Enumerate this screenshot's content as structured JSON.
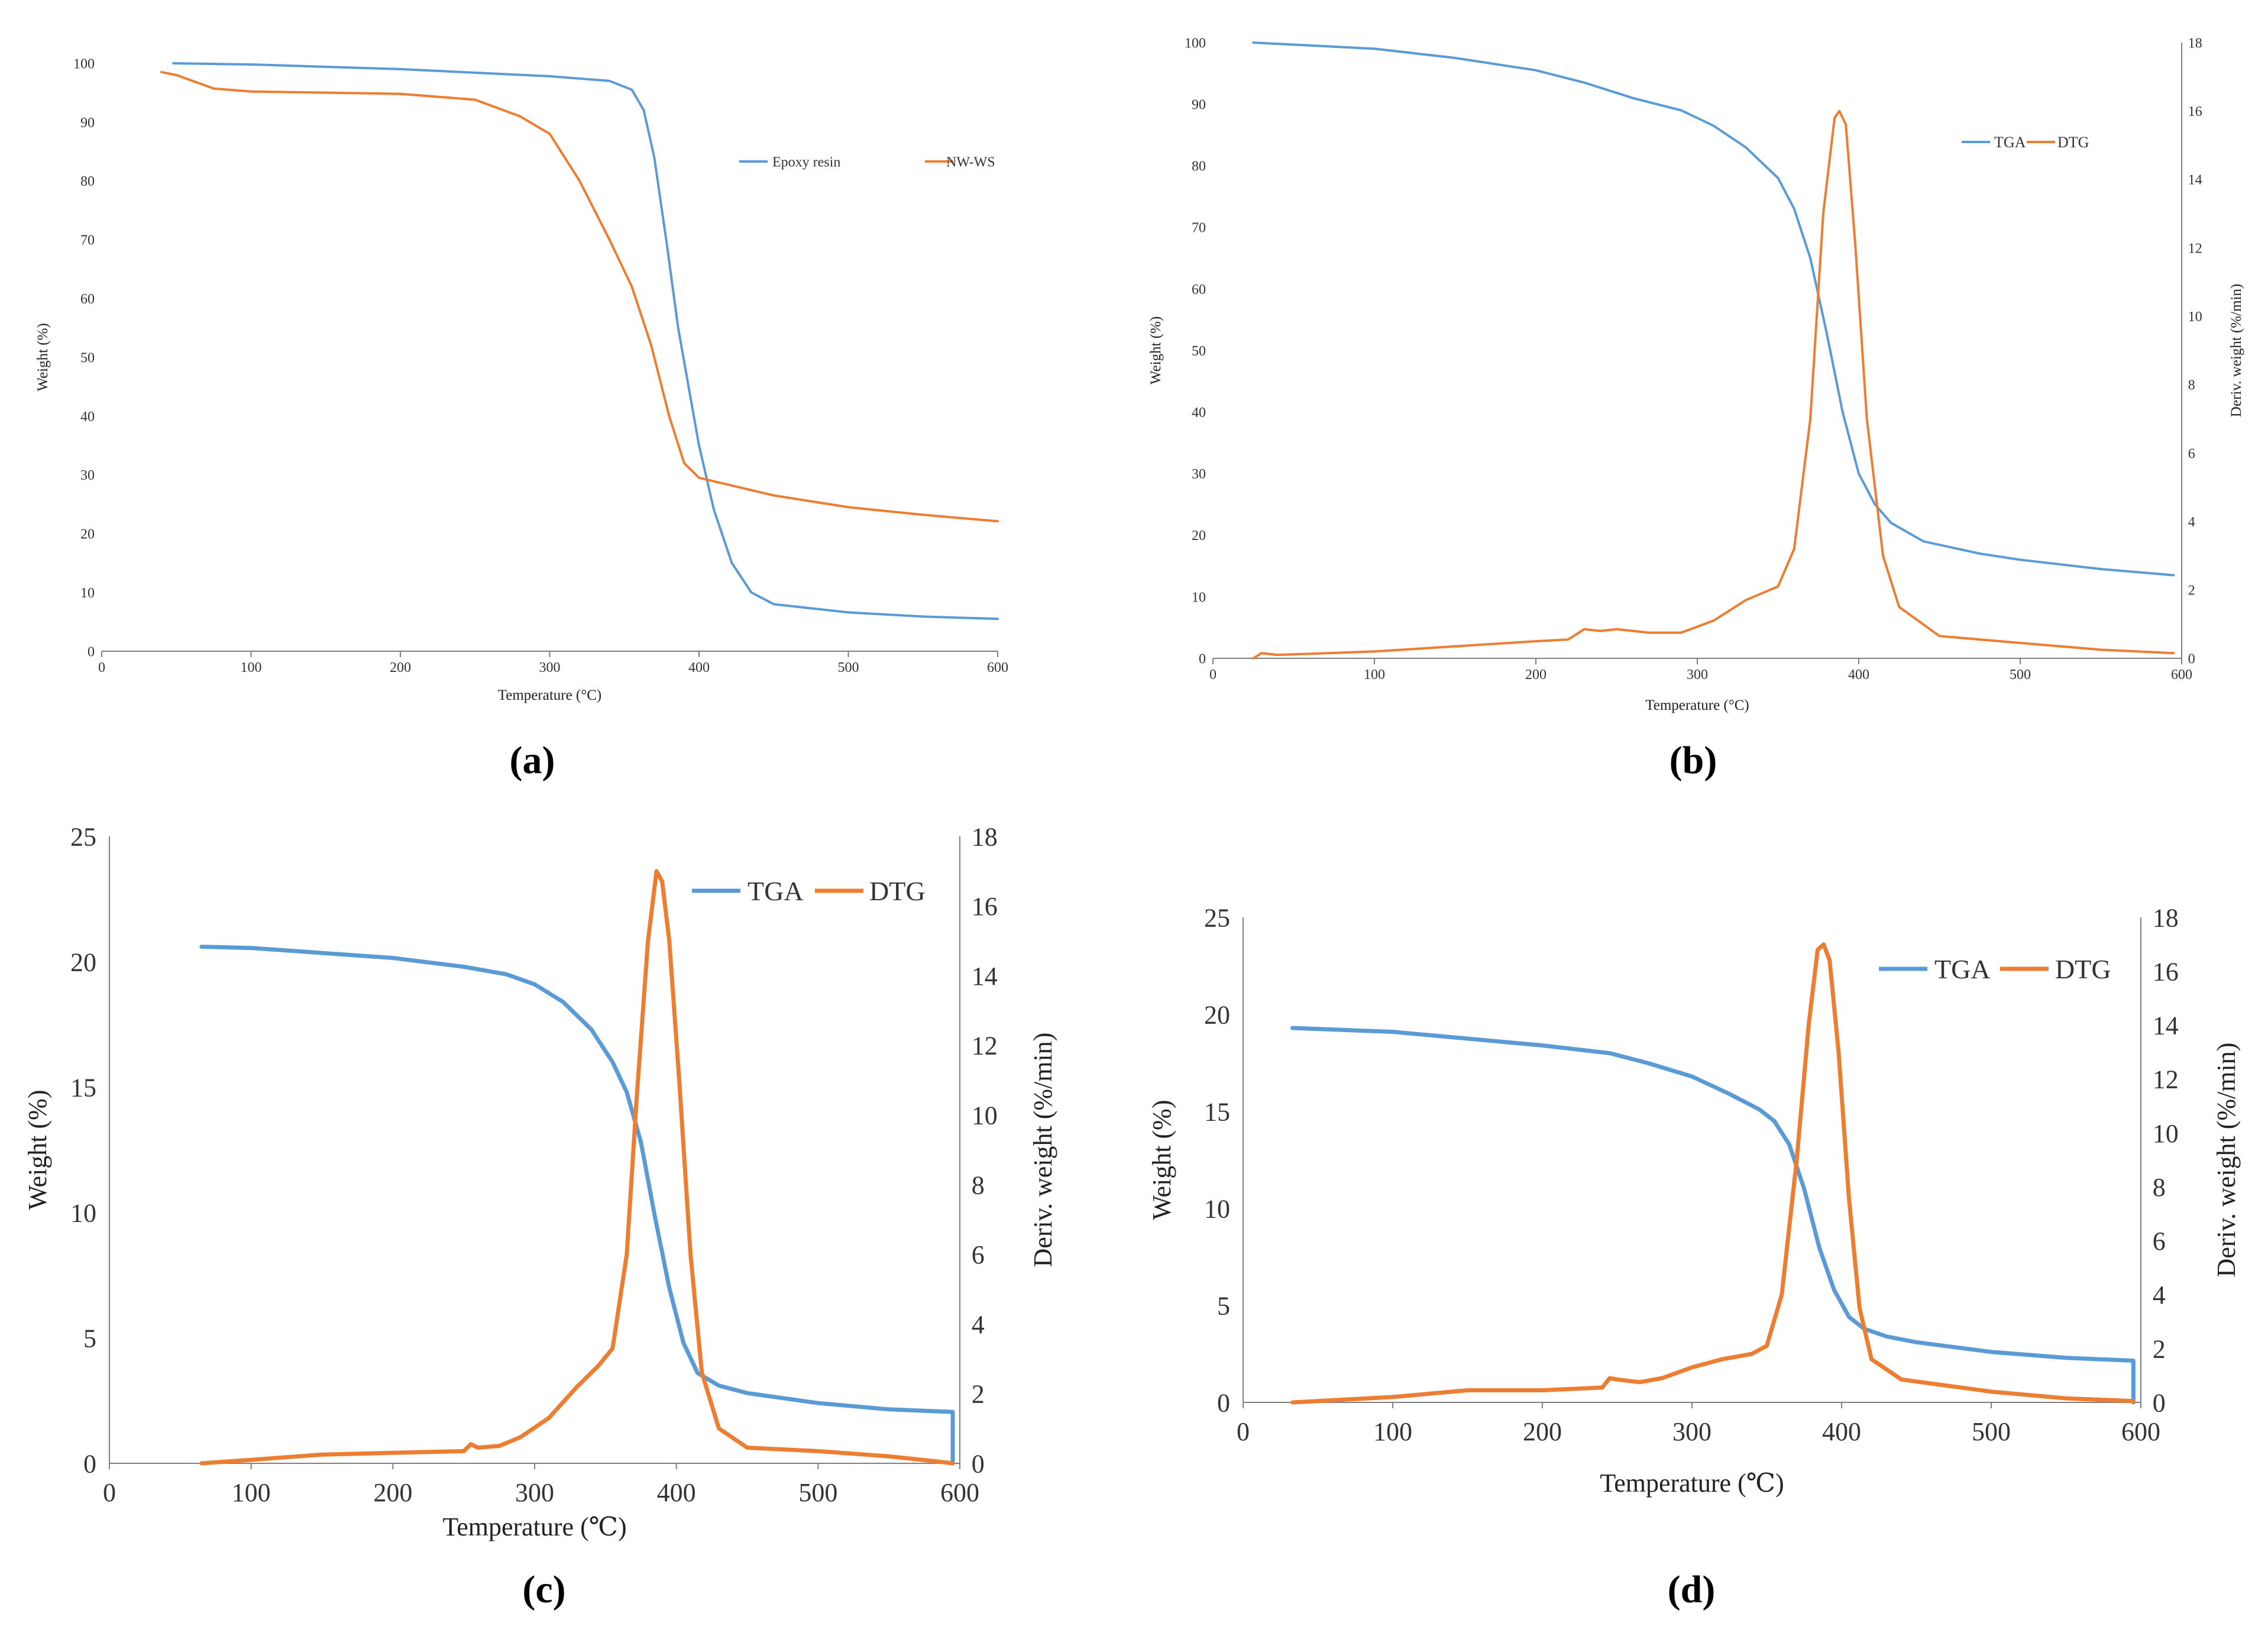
{
  "colors": {
    "tga": "#5B9BD5",
    "dtg": "#ED7D31",
    "axis": "#7f7f7f",
    "text": "#333333"
  },
  "captions": {
    "a": "(a)",
    "b": "(b)",
    "c": "(c)",
    "d": "(d)"
  },
  "chart_data": [
    {
      "id": "a",
      "type": "line",
      "title": "",
      "xlabel": "Temperature (°C)",
      "ylabel": "Weight (%)",
      "xlim": [
        0,
        600
      ],
      "ylim": [
        0,
        100
      ],
      "xticks": [
        0,
        100,
        200,
        300,
        400,
        500,
        600
      ],
      "yticks": [
        0,
        10,
        20,
        30,
        40,
        50,
        60,
        70,
        80,
        90,
        100
      ],
      "legend": [
        "Epoxy resin",
        "NW-WS"
      ],
      "series": [
        {
          "name": "Epoxy resin",
          "color_key": "tga",
          "points": [
            [
              48,
              100
            ],
            [
              100,
              99.8
            ],
            [
              200,
              99
            ],
            [
              300,
              97.8
            ],
            [
              340,
              97
            ],
            [
              355,
              95.5
            ],
            [
              363,
              92
            ],
            [
              370,
              84
            ],
            [
              378,
              70
            ],
            [
              386,
              55
            ],
            [
              393,
              45
            ],
            [
              400,
              35
            ],
            [
              410,
              24
            ],
            [
              422,
              15
            ],
            [
              435,
              10
            ],
            [
              450,
              8
            ],
            [
              500,
              6.6
            ],
            [
              550,
              5.9
            ],
            [
              600,
              5.5
            ]
          ]
        },
        {
          "name": "NW-WS",
          "color_key": "dtg",
          "points": [
            [
              40,
              98.5
            ],
            [
              50,
              98
            ],
            [
              75,
              95.7
            ],
            [
              100,
              95.2
            ],
            [
              200,
              94.8
            ],
            [
              250,
              93.8
            ],
            [
              280,
              91
            ],
            [
              300,
              88
            ],
            [
              320,
              80
            ],
            [
              340,
              70
            ],
            [
              355,
              62
            ],
            [
              368,
              52
            ],
            [
              380,
              40
            ],
            [
              390,
              32
            ],
            [
              400,
              29.5
            ],
            [
              450,
              26.5
            ],
            [
              500,
              24.5
            ],
            [
              550,
              23.2
            ],
            [
              600,
              22.1
            ]
          ]
        }
      ]
    },
    {
      "id": "b",
      "type": "line",
      "title": "",
      "xlabel": "Temperature (°C)",
      "ylabel": "Weight (%)",
      "y2label": "Deriv. weight (%/min)",
      "xlim": [
        0,
        600
      ],
      "ylim": [
        0,
        100
      ],
      "y2lim": [
        0,
        18
      ],
      "xticks": [
        0,
        100,
        200,
        300,
        400,
        500,
        600
      ],
      "yticks": [
        0,
        10,
        20,
        30,
        40,
        50,
        60,
        70,
        80,
        90,
        100
      ],
      "y2ticks": [
        0,
        2,
        4,
        6,
        8,
        10,
        12,
        14,
        16,
        18
      ],
      "legend": [
        "TGA",
        "DTG"
      ],
      "series": [
        {
          "name": "TGA",
          "color_key": "tga",
          "axis": "left",
          "points": [
            [
              25,
              100
            ],
            [
              100,
              99
            ],
            [
              150,
              97.5
            ],
            [
              200,
              95.5
            ],
            [
              230,
              93.5
            ],
            [
              260,
              91
            ],
            [
              290,
              89
            ],
            [
              310,
              86.5
            ],
            [
              330,
              83
            ],
            [
              350,
              78
            ],
            [
              360,
              73
            ],
            [
              370,
              65
            ],
            [
              380,
              53
            ],
            [
              390,
              40
            ],
            [
              400,
              30
            ],
            [
              410,
              25
            ],
            [
              420,
              22
            ],
            [
              440,
              19
            ],
            [
              475,
              17
            ],
            [
              500,
              16
            ],
            [
              550,
              14.5
            ],
            [
              595,
              13.5
            ]
          ]
        },
        {
          "name": "DTG",
          "color_key": "dtg",
          "axis": "right",
          "points": [
            [
              25,
              0
            ],
            [
              30,
              0.15
            ],
            [
              40,
              0.1
            ],
            [
              100,
              0.2
            ],
            [
              150,
              0.35
            ],
            [
              200,
              0.5
            ],
            [
              220,
              0.55
            ],
            [
              230,
              0.85
            ],
            [
              240,
              0.8
            ],
            [
              250,
              0.85
            ],
            [
              260,
              0.8
            ],
            [
              270,
              0.75
            ],
            [
              290,
              0.75
            ],
            [
              310,
              1.1
            ],
            [
              330,
              1.7
            ],
            [
              350,
              2.1
            ],
            [
              360,
              3.2
            ],
            [
              370,
              7
            ],
            [
              378,
              13
            ],
            [
              385,
              15.8
            ],
            [
              388,
              16
            ],
            [
              392,
              15.6
            ],
            [
              398,
              12
            ],
            [
              405,
              7
            ],
            [
              415,
              3
            ],
            [
              425,
              1.5
            ],
            [
              450,
              0.65
            ],
            [
              500,
              0.45
            ],
            [
              550,
              0.25
            ],
            [
              595,
              0.15
            ]
          ]
        }
      ]
    },
    {
      "id": "c",
      "type": "line",
      "title": "",
      "xlabel": "Temperature (℃)",
      "ylabel": "Weight (%)",
      "y2label": "Deriv. weight (%/min)",
      "xlim": [
        0,
        600
      ],
      "ylim": [
        0,
        25
      ],
      "y2lim": [
        0,
        18
      ],
      "xticks": [
        0,
        100,
        200,
        300,
        400,
        500,
        600
      ],
      "yticks": [
        0,
        5,
        10,
        15,
        20,
        25
      ],
      "y2ticks": [
        0,
        2,
        4,
        6,
        8,
        10,
        12,
        14,
        16,
        18
      ],
      "legend": [
        "TGA",
        "DTG"
      ],
      "series": [
        {
          "name": "TGA",
          "color_key": "tga",
          "axis": "left",
          "points": [
            [
              65,
              20.6
            ],
            [
              100,
              20.55
            ],
            [
              200,
              20.15
            ],
            [
              250,
              19.8
            ],
            [
              280,
              19.5
            ],
            [
              300,
              19.1
            ],
            [
              320,
              18.4
            ],
            [
              340,
              17.3
            ],
            [
              355,
              16
            ],
            [
              365,
              14.8
            ],
            [
              375,
              12.8
            ],
            [
              385,
              9.8
            ],
            [
              395,
              7
            ],
            [
              405,
              4.8
            ],
            [
              415,
              3.6
            ],
            [
              430,
              3.1
            ],
            [
              450,
              2.8
            ],
            [
              500,
              2.4
            ],
            [
              550,
              2.15
            ],
            [
              595,
              2.05
            ],
            [
              595,
              0
            ]
          ]
        },
        {
          "name": "DTG",
          "color_key": "dtg",
          "axis": "right",
          "points": [
            [
              65,
              0
            ],
            [
              100,
              0.1
            ],
            [
              150,
              0.25
            ],
            [
              200,
              0.3
            ],
            [
              250,
              0.35
            ],
            [
              255,
              0.55
            ],
            [
              260,
              0.45
            ],
            [
              275,
              0.5
            ],
            [
              290,
              0.75
            ],
            [
              310,
              1.3
            ],
            [
              330,
              2.2
            ],
            [
              345,
              2.8
            ],
            [
              355,
              3.3
            ],
            [
              365,
              6
            ],
            [
              372,
              10.5
            ],
            [
              380,
              15
            ],
            [
              386,
              17
            ],
            [
              390,
              16.7
            ],
            [
              395,
              15
            ],
            [
              402,
              11
            ],
            [
              410,
              6
            ],
            [
              418,
              2.6
            ],
            [
              430,
              1
            ],
            [
              450,
              0.45
            ],
            [
              500,
              0.35
            ],
            [
              550,
              0.2
            ],
            [
              585,
              0.05
            ],
            [
              595,
              0
            ]
          ]
        }
      ]
    },
    {
      "id": "d",
      "type": "line",
      "title": "",
      "xlabel": "Temperature (℃)",
      "ylabel": "Weight (%)",
      "y2label": "Deriv. weight (%/min)",
      "xlim": [
        0,
        600
      ],
      "ylim": [
        0,
        25
      ],
      "y2lim": [
        0,
        18
      ],
      "xticks": [
        0,
        100,
        200,
        300,
        400,
        500,
        600
      ],
      "yticks": [
        0,
        5,
        10,
        15,
        20,
        25
      ],
      "y2ticks": [
        0,
        2,
        4,
        6,
        8,
        10,
        12,
        14,
        16,
        18
      ],
      "legend": [
        "TGA",
        "DTG"
      ],
      "series": [
        {
          "name": "TGA",
          "color_key": "tga",
          "axis": "left",
          "points": [
            [
              33,
              19.3
            ],
            [
              100,
              19.1
            ],
            [
              200,
              18.4
            ],
            [
              245,
              18
            ],
            [
              270,
              17.5
            ],
            [
              300,
              16.8
            ],
            [
              325,
              15.9
            ],
            [
              345,
              15.1
            ],
            [
              355,
              14.5
            ],
            [
              365,
              13.3
            ],
            [
              375,
              11
            ],
            [
              385,
              8
            ],
            [
              395,
              5.8
            ],
            [
              405,
              4.4
            ],
            [
              415,
              3.8
            ],
            [
              430,
              3.4
            ],
            [
              450,
              3.1
            ],
            [
              500,
              2.6
            ],
            [
              550,
              2.3
            ],
            [
              595,
              2.15
            ],
            [
              595,
              0
            ]
          ]
        },
        {
          "name": "DTG",
          "color_key": "dtg",
          "axis": "right",
          "points": [
            [
              33,
              0
            ],
            [
              50,
              0.05
            ],
            [
              100,
              0.2
            ],
            [
              150,
              0.45
            ],
            [
              200,
              0.45
            ],
            [
              240,
              0.55
            ],
            [
              245,
              0.9
            ],
            [
              250,
              0.85
            ],
            [
              265,
              0.75
            ],
            [
              280,
              0.9
            ],
            [
              300,
              1.3
            ],
            [
              320,
              1.6
            ],
            [
              340,
              1.8
            ],
            [
              350,
              2.1
            ],
            [
              360,
              4
            ],
            [
              370,
              9
            ],
            [
              378,
              14
            ],
            [
              384,
              16.8
            ],
            [
              388,
              17
            ],
            [
              392,
              16.4
            ],
            [
              398,
              13
            ],
            [
              405,
              7.5
            ],
            [
              412,
              3.5
            ],
            [
              420,
              1.6
            ],
            [
              440,
              0.85
            ],
            [
              500,
              0.4
            ],
            [
              550,
              0.15
            ],
            [
              595,
              0.05
            ]
          ]
        }
      ]
    }
  ]
}
